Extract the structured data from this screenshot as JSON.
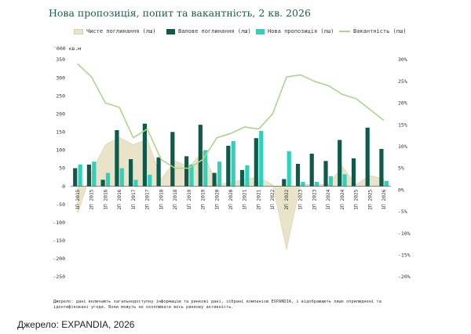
{
  "title": "Нова пропозиція, попит та вакантність, 2 кв. 2026",
  "legend": {
    "net_absorption": "Чисте поглинання (лш)",
    "gross_absorption": "Валове поглинання (лш)",
    "new_supply": "Нова пропозиція (лш)",
    "vacancy": "Вакантність (пш)"
  },
  "unit_label": "'000 кв.м",
  "note": "Джерело: дані включають загальнодоступну інформацію та ринкові дані, зібрані компанією EXPANDIA, і відображають лише оприлюднені та ідентифіковані угоди. Вони можуть не охоплювати весь ринкову активність.",
  "source": "Джерело: EXPANDIA, 2026",
  "colors": {
    "net": "#e9e4c9",
    "net_stroke": "#d7cfa6",
    "gross": "#0f5a4a",
    "new": "#2fd1bd",
    "vacancy": "#a9d68f"
  },
  "chart_data": {
    "type": "bar",
    "categories": [
      "1П 2015",
      "2П 2015",
      "1П 2016",
      "2П 2016",
      "1П 2017",
      "2П 2017",
      "1П 2018",
      "2П 2018",
      "1П 2019",
      "2П 2019",
      "1П 2020",
      "2П 2020",
      "1П 2021",
      "2П 2021",
      "1П 2022",
      "2П 2022",
      "1П 2023",
      "2П 2023",
      "1П 2024",
      "2П 2024",
      "1П 2025",
      "2П 2025",
      "1П 2026"
    ],
    "series": [
      {
        "name": "Чисте поглинання (лш)",
        "type": "area",
        "axis": "left",
        "values": [
          -75,
          40,
          115,
          135,
          115,
          130,
          20,
          70,
          55,
          95,
          5,
          10,
          20,
          25,
          5,
          -175,
          5,
          5,
          5,
          55,
          5,
          30,
          20
        ]
      },
      {
        "name": "Валове поглинання (лш)",
        "type": "bar",
        "axis": "left",
        "values": [
          50,
          60,
          18,
          155,
          75,
          173,
          80,
          150,
          83,
          170,
          37,
          112,
          45,
          133,
          0,
          20,
          62,
          90,
          70,
          128,
          77,
          162,
          103
        ]
      },
      {
        "name": "Нова пропозиція (лш)",
        "type": "bar",
        "axis": "left",
        "values": [
          60,
          68,
          37,
          50,
          18,
          32,
          0,
          0,
          60,
          100,
          68,
          125,
          58,
          153,
          0,
          97,
          12,
          12,
          28,
          33,
          0,
          0,
          15
        ]
      },
      {
        "name": "Вакантність (пш)",
        "type": "line",
        "axis": "right",
        "values": [
          29,
          26,
          20,
          19,
          12,
          14,
          7,
          5,
          5,
          7,
          12,
          13,
          14.5,
          14,
          17.5,
          26,
          26.5,
          25,
          24,
          22,
          21,
          18.5,
          16
        ]
      }
    ],
    "y_left": {
      "min": -250,
      "max": 350,
      "ticks": [
        -250,
        -200,
        -150,
        -100,
        -50,
        0,
        50,
        100,
        150,
        200,
        250,
        300,
        350
      ]
    },
    "y_right": {
      "min": -20,
      "max": 30,
      "ticks": [
        "-20%",
        "-15%",
        "-10%",
        "-5%",
        "0%",
        "5%",
        "10%",
        "15%",
        "20%",
        "25%",
        "30%"
      ]
    },
    "grid": false,
    "legend_position": "top"
  }
}
